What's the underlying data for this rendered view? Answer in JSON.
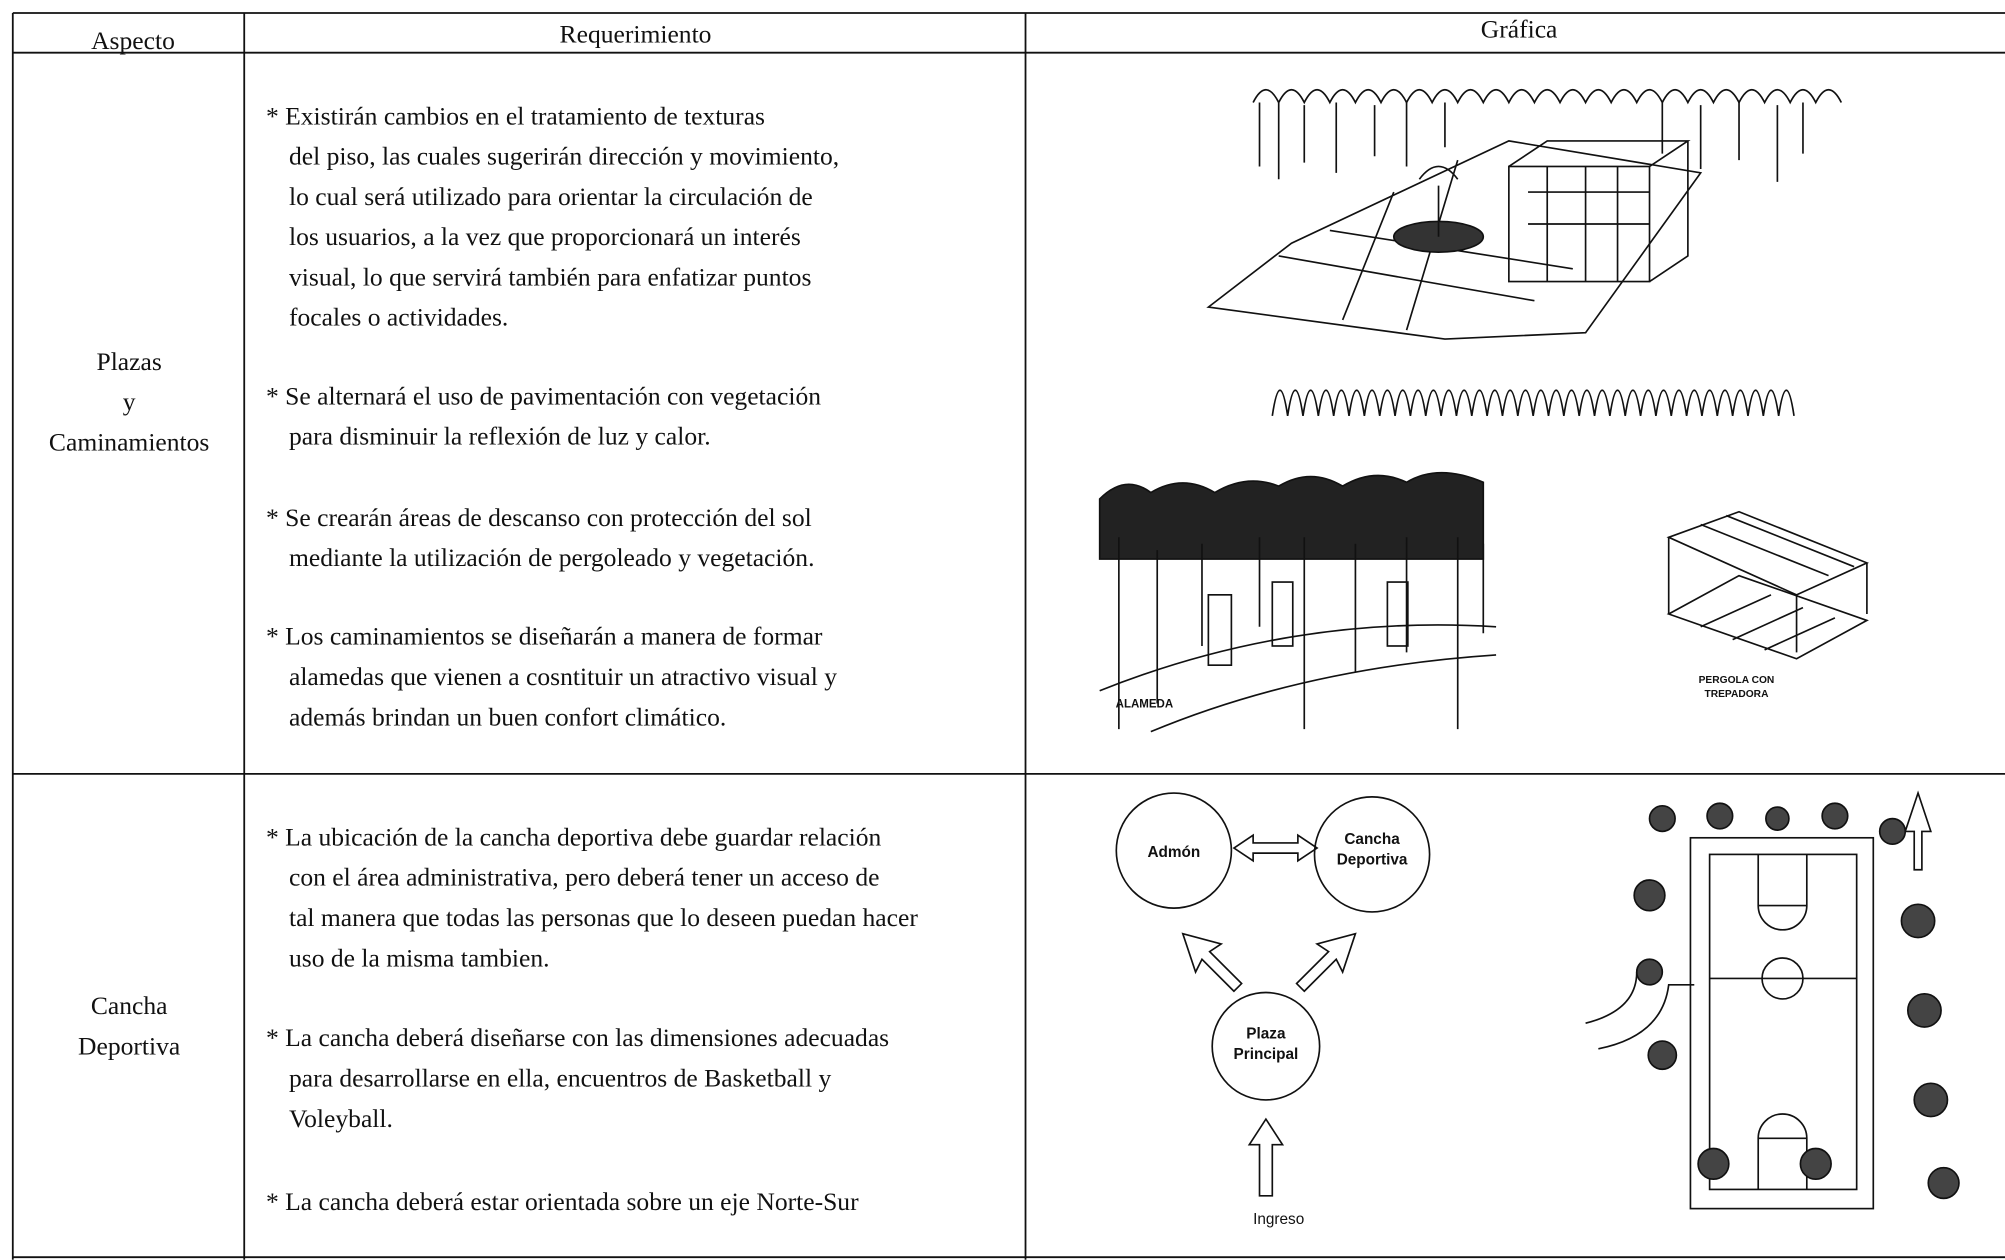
{
  "header": {
    "aspect": "Aspecto",
    "requirement": "Requerimiento",
    "graphic": "Gráfica"
  },
  "rows": [
    {
      "aspect": [
        "Plazas",
        "y",
        "Caminamientos"
      ],
      "requirements": [
        [
          "*  Existirán cambios en el tratamiento de texturas",
          "del piso, las cuales sugerirán dirección y movimiento,",
          "lo cual será utilizado para orientar la circulación de",
          "los usuarios, a la vez que proporcionará un interés",
          "visual, lo que servirá también para enfatizar puntos",
          "focales o actividades."
        ],
        [
          "*  Se alternará el uso de pavimentación con vegetación",
          "para disminuir  la reflexión de luz y calor."
        ],
        [
          "*  Se crearán áreas de descanso con protección del sol",
          "mediante la utilización de pergoleado y vegetación."
        ],
        [
          "*  Los caminamientos se diseñarán a manera de formar",
          "alamedas que vienen a cosntituir un atractivo visual y",
          "además brindan un buen confort climático."
        ]
      ],
      "graphic_labels": {
        "alameda": "ALAMEDA",
        "pergola": [
          "PERGOLA CON",
          "TREPADORA"
        ]
      }
    },
    {
      "aspect": [
        "Cancha",
        "Deportiva"
      ],
      "requirements": [
        [
          "*  La ubicación de la cancha deportiva debe guardar relación",
          "con el área administrativa,  pero deberá tener un acceso de",
          "tal manera que todas las personas que lo deseen  puedan hacer",
          "uso de la misma tambien."
        ],
        [
          "*  La cancha deberá diseñarse con las dimensiones adecuadas",
          "para desarrollarse en ella, encuentros de Basketball y",
          "Voleyball."
        ],
        [
          "*  La cancha deberá estar orientada sobre un eje Norte-Sur"
        ]
      ],
      "graphic_labels": {
        "admon": [
          "Admón"
        ],
        "cancha": [
          "Cancha",
          "Deportiva"
        ],
        "plaza": [
          "Plaza",
          "Principal"
        ],
        "ingreso": [
          "Ingreso"
        ]
      }
    }
  ]
}
